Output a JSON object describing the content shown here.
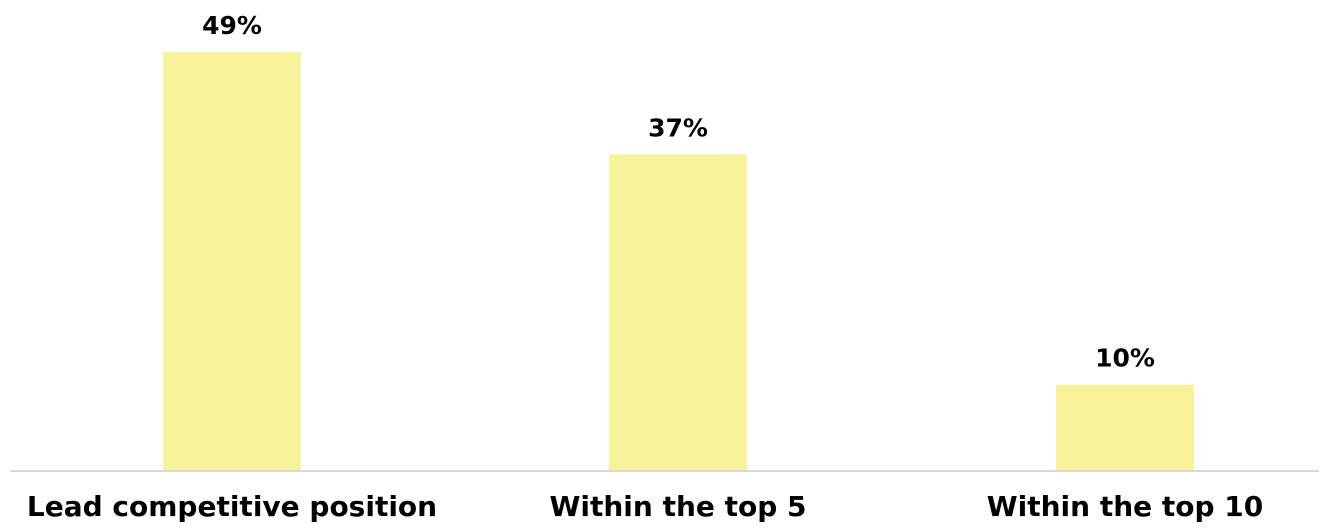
{
  "chart_data": {
    "type": "bar",
    "categories": [
      "Lead competitive position",
      "Within the top 5",
      "Within the top 10"
    ],
    "values": [
      49,
      37,
      10
    ],
    "value_labels": [
      "49%",
      "37%",
      "10%"
    ],
    "title": "",
    "xlabel": "",
    "ylabel": "",
    "ylim": [
      0,
      49
    ],
    "grid": false,
    "legend": "none",
    "bar_color": "#f8f29a",
    "axis_color": "#d9d9d9",
    "text_color": "#000000"
  }
}
